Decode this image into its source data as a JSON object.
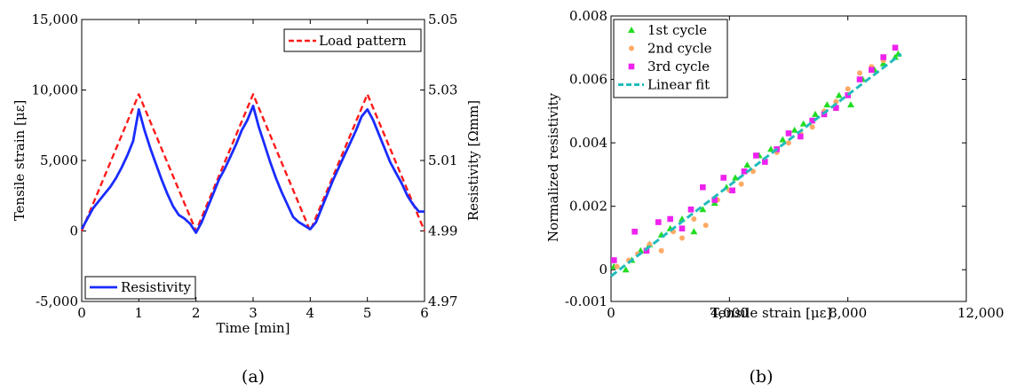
{
  "chart_data": [
    {
      "type": "line",
      "caption": "(a)",
      "xlabel": "Time [min]",
      "ylabel": "Tensile strain [με]",
      "y2label": "Resistivity [Ωmm]",
      "xlim": [
        0,
        6
      ],
      "ylim": [
        -5000,
        15000
      ],
      "y2lim": [
        4.97,
        5.05
      ],
      "xticks": [
        0,
        1,
        2,
        3,
        4,
        5,
        6
      ],
      "xtick_labels": [
        "0",
        "1",
        "2",
        "3",
        "4",
        "5",
        "6"
      ],
      "yticks": [
        -5000,
        0,
        5000,
        10000,
        15000
      ],
      "ytick_labels": [
        "-5,000",
        "0",
        "5,000",
        "10,000",
        "15,000"
      ],
      "y2ticks": [
        4.97,
        4.99,
        5.01,
        5.03,
        5.05
      ],
      "y2tick_labels": [
        "4.97",
        "4.99",
        "5.01",
        "5.03",
        "5.05"
      ],
      "series": [
        {
          "name": "Load pattern",
          "axis": "left",
          "color": "#ff1a1a",
          "dash": true,
          "x": [
            0,
            1,
            2,
            3,
            4,
            5,
            6
          ],
          "y": [
            0,
            9700,
            0,
            9700,
            0,
            9700,
            0
          ]
        },
        {
          "name": "Resistivity",
          "axis": "right",
          "color": "#1a2cff",
          "dash": false,
          "x": [
            0,
            0.1,
            0.2,
            0.3,
            0.4,
            0.5,
            0.6,
            0.7,
            0.8,
            0.9,
            1.0,
            1.1,
            1.2,
            1.3,
            1.4,
            1.5,
            1.6,
            1.7,
            1.8,
            1.9,
            2.0,
            2.1,
            2.2,
            2.3,
            2.4,
            2.5,
            2.6,
            2.7,
            2.8,
            2.9,
            3.0,
            3.1,
            3.2,
            3.3,
            3.4,
            3.5,
            3.6,
            3.7,
            3.8,
            3.9,
            4.0,
            4.1,
            4.2,
            4.3,
            4.4,
            4.5,
            4.6,
            4.7,
            4.8,
            4.9,
            5.0,
            5.1,
            5.2,
            5.3,
            5.4,
            5.5,
            5.6,
            5.7,
            5.8,
            5.9,
            6.0
          ],
          "y": [
            4.9905,
            4.9935,
            4.9965,
            4.9985,
            5.0005,
            5.0025,
            5.005,
            5.008,
            5.0115,
            5.0155,
            5.0245,
            5.0185,
            5.0135,
            5.009,
            5.0045,
            5.0005,
            4.997,
            4.9945,
            4.9935,
            4.992,
            4.9895,
            4.9925,
            4.9965,
            5.0005,
            5.0045,
            5.0075,
            5.011,
            5.0145,
            5.0185,
            5.0215,
            5.0255,
            5.0195,
            5.0145,
            5.0095,
            5.005,
            5.001,
            4.9975,
            4.994,
            4.9925,
            4.9915,
            4.9905,
            4.9925,
            4.9965,
            5.0005,
            5.0045,
            5.008,
            5.0115,
            5.015,
            5.0185,
            5.0225,
            5.0245,
            5.0215,
            5.0175,
            5.0135,
            5.0095,
            5.0065,
            5.0035,
            5.0,
            4.9975,
            4.9955,
            4.9955
          ]
        }
      ]
    },
    {
      "type": "scatter",
      "caption": "(b)",
      "xlabel": "Tensile strain [με]",
      "ylabel": "Normalized resistivity",
      "xlim": [
        0,
        12000
      ],
      "ylim": [
        -0.001,
        0.008
      ],
      "xticks": [
        0,
        4000,
        8000,
        12000
      ],
      "xtick_labels": [
        "0",
        "4,000",
        "8,000",
        "12,000"
      ],
      "yticks": [
        -0.001,
        0,
        0.002,
        0.004,
        0.006,
        0.008
      ],
      "ytick_labels": [
        "-0.001",
        "0",
        "0.002",
        "0.004",
        "0.006",
        "0.008"
      ],
      "series": [
        {
          "name": "1st cycle",
          "marker": "triangle",
          "color": "#22dd22",
          "x": [
            100,
            500,
            700,
            1000,
            1300,
            1700,
            2000,
            2400,
            2800,
            3100,
            3500,
            3900,
            4200,
            4600,
            5000,
            5400,
            5800,
            6200,
            6500,
            6900,
            7300,
            7700,
            8100,
            8500,
            8900,
            9200,
            9600,
            9700
          ],
          "y": [
            0.0001,
            0.0,
            0.0003,
            0.0006,
            0.0008,
            0.0011,
            0.0013,
            0.0016,
            0.0012,
            0.0019,
            0.0021,
            0.0026,
            0.0029,
            0.0033,
            0.0036,
            0.0038,
            0.0041,
            0.0044,
            0.0046,
            0.0049,
            0.0052,
            0.0055,
            0.0052,
            0.006,
            0.0063,
            0.0065,
            0.0067,
            0.0068
          ]
        },
        {
          "name": "2nd cycle",
          "marker": "circle",
          "color": "#ffaa66",
          "x": [
            200,
            600,
            900,
            1300,
            1700,
            2100,
            2400,
            2800,
            3200,
            3600,
            4000,
            4400,
            4800,
            5200,
            5600,
            6000,
            6400,
            6800,
            7200,
            7600,
            8000,
            8400,
            8800,
            9200,
            9600
          ],
          "y": [
            0.0001,
            0.0003,
            0.0005,
            0.0008,
            0.0006,
            0.0012,
            0.001,
            0.0016,
            0.0014,
            0.0022,
            0.0025,
            0.0027,
            0.0031,
            0.0034,
            0.0037,
            0.004,
            0.0043,
            0.0045,
            0.005,
            0.0053,
            0.0057,
            0.0062,
            0.0064,
            0.0066,
            0.007
          ]
        },
        {
          "name": "3rd cycle",
          "marker": "square",
          "color": "#ee22ee",
          "x": [
            100,
            800,
            1200,
            1600,
            2000,
            2400,
            2700,
            3100,
            3500,
            3800,
            4100,
            4500,
            4900,
            5200,
            5600,
            6000,
            6400,
            6800,
            7200,
            7600,
            8000,
            8400,
            8800,
            9200,
            9600
          ],
          "y": [
            0.0003,
            0.0012,
            0.0006,
            0.0015,
            0.0016,
            0.0013,
            0.0019,
            0.0026,
            0.0022,
            0.0029,
            0.0025,
            0.0031,
            0.0036,
            0.0034,
            0.0038,
            0.0043,
            0.0042,
            0.0047,
            0.0049,
            0.0051,
            0.0055,
            0.006,
            0.0063,
            0.0067,
            0.007
          ]
        },
        {
          "name": "Linear fit",
          "type": "line",
          "dash": true,
          "color": "#22bbbb",
          "x": [
            0,
            9800
          ],
          "y": [
            -0.0002,
            0.0068
          ]
        }
      ]
    }
  ]
}
